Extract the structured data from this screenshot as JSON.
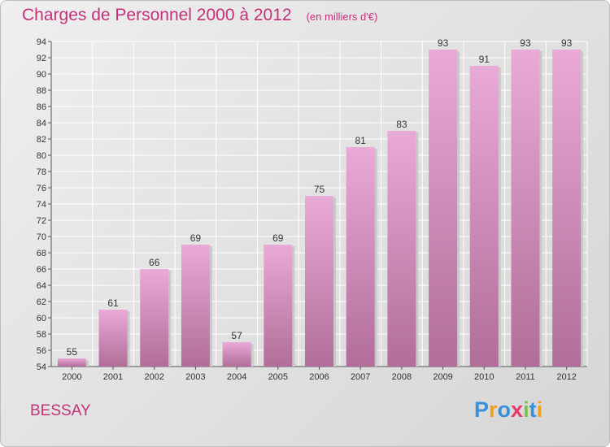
{
  "title": "Charges de Personnel 2000 à 2012",
  "subtitle": "(en milliers d'€)",
  "commune": "BESSAY",
  "logo": {
    "letters": [
      "P",
      "r",
      "o",
      "x",
      "i",
      "t",
      "i"
    ],
    "colors": [
      "#3a8fd9",
      "#f0a020",
      "#3a8fd9",
      "#e83a6a",
      "#7cc242",
      "#3a8fd9",
      "#f0a020"
    ]
  },
  "colors": {
    "bar_light": "#eaaad6",
    "bar_dark": "#b06e98",
    "title": "#c5307a"
  },
  "chart_data": {
    "type": "bar",
    "categories": [
      "2000",
      "2001",
      "2002",
      "2003",
      "2004",
      "2005",
      "2006",
      "2007",
      "2008",
      "2009",
      "2010",
      "2011",
      "2012"
    ],
    "values": [
      55,
      61,
      66,
      69,
      57,
      69,
      75,
      81,
      83,
      93,
      91,
      93,
      93
    ],
    "title": "Charges de Personnel 2000 à 2012",
    "xlabel": "",
    "ylabel": "",
    "ylim": [
      54,
      94
    ],
    "yticks": [
      54,
      56,
      58,
      60,
      62,
      64,
      66,
      68,
      70,
      72,
      74,
      76,
      78,
      80,
      82,
      84,
      86,
      88,
      90,
      92,
      94
    ],
    "grid": true,
    "data_labels": true
  }
}
